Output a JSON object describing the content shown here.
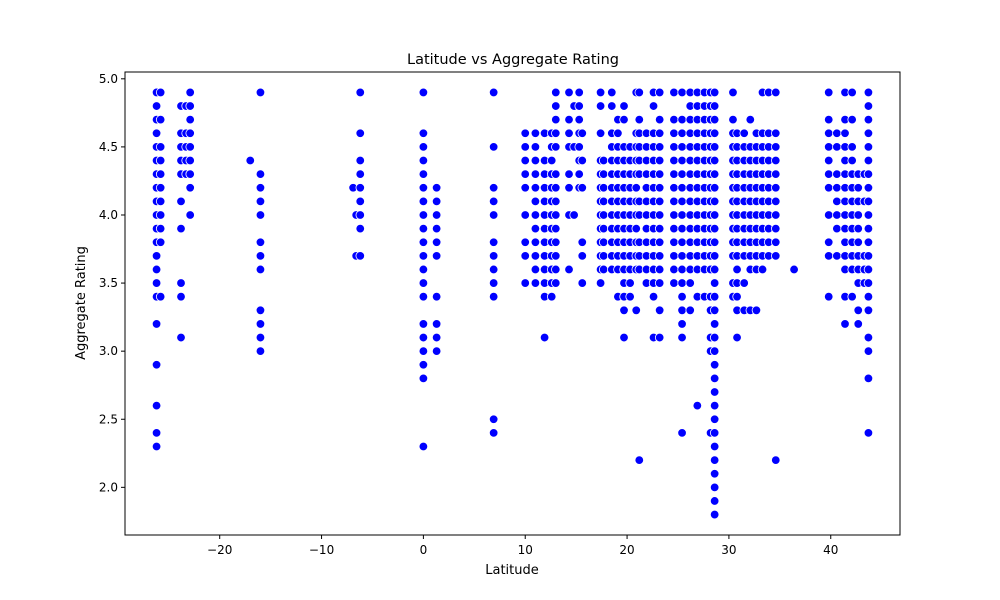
{
  "chart_data": {
    "type": "scatter",
    "title": "Latitude vs Aggregate Rating",
    "xlabel": "Latitude",
    "ylabel": "Aggregate Rating",
    "xlim": [
      -29.3,
      46.8
    ],
    "ylim": [
      1.65,
      5.05
    ],
    "xticks": [
      -20,
      -10,
      0,
      10,
      20,
      30,
      40
    ],
    "xtick_labels": [
      "−20",
      "−10",
      "0",
      "10",
      "20",
      "30",
      "40"
    ],
    "yticks": [
      2.0,
      2.5,
      3.0,
      3.5,
      4.0,
      4.5,
      5.0
    ],
    "ytick_labels": [
      "2.0",
      "2.5",
      "3.0",
      "3.5",
      "4.0",
      "4.5",
      "5.0"
    ],
    "grid": false,
    "legend": "none",
    "marker_color": "#0000ff",
    "marker_edge_color": "#ffffff",
    "columns": [
      {
        "x": -26.2,
        "y": [
          2.3,
          2.4,
          2.6,
          2.9,
          3.2,
          3.4,
          3.5,
          3.6,
          3.7,
          3.8,
          3.9,
          4.0,
          4.1,
          4.2,
          4.3,
          4.4,
          4.5,
          4.6,
          4.7,
          4.8,
          4.9
        ]
      },
      {
        "x": -25.8,
        "y": [
          3.4,
          3.8,
          3.9,
          4.0,
          4.1,
          4.2,
          4.3,
          4.4,
          4.5,
          4.7,
          4.9
        ]
      },
      {
        "x": -23.8,
        "y": [
          3.1,
          3.4,
          3.5,
          3.9,
          4.1,
          4.3,
          4.4,
          4.5,
          4.6,
          4.8
        ]
      },
      {
        "x": -23.3,
        "y": [
          4.3,
          4.4,
          4.5,
          4.6,
          4.8
        ]
      },
      {
        "x": -22.9,
        "y": [
          4.0,
          4.2,
          4.3,
          4.4,
          4.5,
          4.6,
          4.7,
          4.8,
          4.9
        ]
      },
      {
        "x": -17.0,
        "y": [
          4.4
        ]
      },
      {
        "x": -16.0,
        "y": [
          3.0,
          3.1,
          3.2,
          3.3,
          3.6,
          3.7,
          3.8,
          4.0,
          4.1,
          4.2,
          4.3,
          4.9
        ]
      },
      {
        "x": -6.9,
        "y": [
          4.2
        ]
      },
      {
        "x": -6.6,
        "y": [
          3.7,
          4.0
        ]
      },
      {
        "x": -6.2,
        "y": [
          3.7,
          3.9,
          4.0,
          4.1,
          4.2,
          4.3,
          4.4,
          4.6,
          4.9
        ]
      },
      {
        "x": 0.0,
        "y": [
          2.3,
          2.8,
          2.9,
          3.0,
          3.1,
          3.2,
          3.4,
          3.5,
          3.6,
          3.7,
          3.8,
          3.9,
          4.0,
          4.1,
          4.2,
          4.3,
          4.4,
          4.5,
          4.6,
          4.9
        ]
      },
      {
        "x": 1.3,
        "y": [
          3.0,
          3.1,
          3.2,
          3.4,
          3.7,
          3.8,
          3.9,
          4.0,
          4.1,
          4.2
        ]
      },
      {
        "x": 6.9,
        "y": [
          2.4,
          2.5,
          3.4,
          3.5,
          3.6,
          3.7,
          3.8,
          4.0,
          4.1,
          4.2,
          4.5,
          4.9
        ]
      },
      {
        "x": 10.0,
        "y": [
          3.5,
          3.7,
          3.8,
          4.0,
          4.2,
          4.3,
          4.4,
          4.5,
          4.6
        ]
      },
      {
        "x": 11.0,
        "y": [
          3.5,
          3.6,
          3.7,
          3.8,
          3.9,
          4.0,
          4.1,
          4.2,
          4.3,
          4.4,
          4.5,
          4.6
        ]
      },
      {
        "x": 11.9,
        "y": [
          3.1,
          3.4,
          3.5,
          3.6,
          3.7,
          3.8,
          3.9,
          4.0,
          4.1,
          4.2,
          4.3,
          4.4,
          4.6
        ]
      },
      {
        "x": 12.6,
        "y": [
          3.4,
          3.5,
          3.6,
          3.7,
          3.8,
          3.9,
          4.0,
          4.1,
          4.2,
          4.3,
          4.4,
          4.5,
          4.6
        ]
      },
      {
        "x": 13.0,
        "y": [
          3.5,
          3.6,
          3.7,
          3.8,
          3.9,
          4.0,
          4.1,
          4.2,
          4.3,
          4.5,
          4.6,
          4.7,
          4.8,
          4.9
        ]
      },
      {
        "x": 14.3,
        "y": [
          3.6,
          4.0,
          4.2,
          4.3,
          4.5,
          4.6,
          4.7,
          4.9
        ]
      },
      {
        "x": 14.8,
        "y": [
          4.0,
          4.5,
          4.8
        ]
      },
      {
        "x": 15.3,
        "y": [
          4.2,
          4.3,
          4.4,
          4.5,
          4.6,
          4.7,
          4.8,
          4.9
        ]
      },
      {
        "x": 15.6,
        "y": [
          3.5,
          3.7,
          3.8,
          4.2,
          4.4,
          4.6
        ]
      },
      {
        "x": 17.4,
        "y": [
          3.5,
          3.6,
          3.7,
          3.8,
          3.9,
          4.0,
          4.1,
          4.2,
          4.3,
          4.4,
          4.6,
          4.8,
          4.9
        ]
      },
      {
        "x": 17.7,
        "y": [
          3.6,
          3.7,
          3.8,
          3.9,
          4.0,
          4.1,
          4.2,
          4.3,
          4.4
        ]
      },
      {
        "x": 18.5,
        "y": [
          3.6,
          3.7,
          3.8,
          3.9,
          4.0,
          4.1,
          4.2,
          4.3,
          4.4,
          4.5,
          4.6,
          4.8,
          4.9
        ]
      },
      {
        "x": 19.1,
        "y": [
          3.4,
          3.6,
          3.7,
          3.8,
          3.9,
          4.0,
          4.1,
          4.2,
          4.3,
          4.4,
          4.5,
          4.6,
          4.7
        ]
      },
      {
        "x": 19.7,
        "y": [
          3.1,
          3.3,
          3.4,
          3.5,
          3.6,
          3.7,
          3.8,
          3.9,
          4.0,
          4.1,
          4.2,
          4.3,
          4.4,
          4.5,
          4.7,
          4.8
        ]
      },
      {
        "x": 20.3,
        "y": [
          3.4,
          3.5,
          3.6,
          3.7,
          3.8,
          3.9,
          4.0,
          4.1,
          4.2,
          4.3,
          4.4,
          4.5
        ]
      },
      {
        "x": 20.9,
        "y": [
          3.3,
          3.6,
          3.7,
          3.8,
          3.9,
          4.0,
          4.1,
          4.2,
          4.3,
          4.4,
          4.5,
          4.6,
          4.9
        ]
      },
      {
        "x": 21.2,
        "y": [
          2.2,
          3.6,
          3.7,
          3.8,
          4.0,
          4.1,
          4.3,
          4.4,
          4.5,
          4.6,
          4.7,
          4.9
        ]
      },
      {
        "x": 21.9,
        "y": [
          3.5,
          3.6,
          3.7,
          3.8,
          3.9,
          4.0,
          4.1,
          4.2,
          4.3,
          4.4,
          4.5,
          4.6
        ]
      },
      {
        "x": 22.6,
        "y": [
          3.1,
          3.4,
          3.5,
          3.6,
          3.7,
          3.8,
          3.9,
          4.0,
          4.1,
          4.2,
          4.3,
          4.4,
          4.5,
          4.6,
          4.8,
          4.9
        ]
      },
      {
        "x": 23.2,
        "y": [
          3.1,
          3.3,
          3.5,
          3.6,
          3.7,
          3.8,
          3.9,
          4.0,
          4.1,
          4.2,
          4.3,
          4.4,
          4.5,
          4.6,
          4.7,
          4.9
        ]
      },
      {
        "x": 24.6,
        "y": [
          3.5,
          3.6,
          3.7,
          3.8,
          3.9,
          4.0,
          4.1,
          4.2,
          4.3,
          4.4,
          4.5,
          4.6,
          4.7,
          4.9
        ]
      },
      {
        "x": 25.4,
        "y": [
          2.4,
          3.1,
          3.2,
          3.3,
          3.4,
          3.5,
          3.6,
          3.7,
          3.8,
          3.9,
          4.0,
          4.1,
          4.2,
          4.3,
          4.4,
          4.5,
          4.6,
          4.7,
          4.9
        ]
      },
      {
        "x": 26.2,
        "y": [
          3.3,
          3.5,
          3.6,
          3.7,
          3.8,
          3.9,
          4.0,
          4.1,
          4.2,
          4.3,
          4.4,
          4.5,
          4.6,
          4.7,
          4.8,
          4.9
        ]
      },
      {
        "x": 26.9,
        "y": [
          2.6,
          3.4,
          3.6,
          3.7,
          3.8,
          3.9,
          4.0,
          4.1,
          4.2,
          4.3,
          4.4,
          4.5,
          4.6,
          4.7,
          4.8,
          4.9
        ]
      },
      {
        "x": 27.6,
        "y": [
          3.4,
          3.6,
          3.7,
          3.8,
          3.9,
          4.0,
          4.1,
          4.2,
          4.3,
          4.4,
          4.5,
          4.6,
          4.7,
          4.8,
          4.9
        ]
      },
      {
        "x": 28.2,
        "y": [
          2.4,
          3.0,
          3.1,
          3.3,
          3.4,
          3.6,
          3.7,
          3.8,
          3.9,
          4.0,
          4.1,
          4.2,
          4.3,
          4.4,
          4.5,
          4.6,
          4.7,
          4.8,
          4.9
        ]
      },
      {
        "x": 28.6,
        "y": [
          1.8,
          1.9,
          2.0,
          2.1,
          2.2,
          2.3,
          2.4,
          2.5,
          2.6,
          2.7,
          2.8,
          2.9,
          3.0,
          3.1,
          3.2,
          3.3,
          3.4,
          3.5,
          3.6,
          3.7,
          3.8,
          3.9,
          4.0,
          4.1,
          4.2,
          4.3,
          4.4,
          4.5,
          4.6,
          4.7,
          4.8,
          4.9
        ]
      },
      {
        "x": 30.4,
        "y": [
          3.4,
          3.5,
          3.7,
          3.8,
          3.9,
          4.0,
          4.1,
          4.2,
          4.3,
          4.4,
          4.5,
          4.6,
          4.7,
          4.9
        ]
      },
      {
        "x": 30.8,
        "y": [
          3.1,
          3.3,
          3.4,
          3.5,
          3.6,
          3.7,
          3.8,
          3.9,
          4.0,
          4.1,
          4.2,
          4.3,
          4.4,
          4.5,
          4.6
        ]
      },
      {
        "x": 31.5,
        "y": [
          3.3,
          3.5,
          3.7,
          3.8,
          3.9,
          4.0,
          4.1,
          4.2,
          4.3,
          4.4,
          4.5,
          4.6
        ]
      },
      {
        "x": 32.1,
        "y": [
          3.3,
          3.6,
          3.7,
          3.8,
          3.9,
          4.0,
          4.1,
          4.2,
          4.3,
          4.4,
          4.5,
          4.7
        ]
      },
      {
        "x": 32.7,
        "y": [
          3.3,
          3.6,
          3.7,
          3.8,
          3.9,
          4.0,
          4.1,
          4.2,
          4.3,
          4.4,
          4.5,
          4.6
        ]
      },
      {
        "x": 33.3,
        "y": [
          3.6,
          3.7,
          3.8,
          3.9,
          4.0,
          4.1,
          4.2,
          4.3,
          4.4,
          4.5,
          4.6,
          4.9
        ]
      },
      {
        "x": 33.9,
        "y": [
          3.7,
          3.8,
          3.9,
          4.0,
          4.1,
          4.2,
          4.3,
          4.4,
          4.5,
          4.6,
          4.9
        ]
      },
      {
        "x": 34.6,
        "y": [
          2.2,
          3.7,
          3.8,
          3.9,
          4.0,
          4.1,
          4.2,
          4.3,
          4.4,
          4.5,
          4.6,
          4.9
        ]
      },
      {
        "x": 36.4,
        "y": [
          3.6
        ]
      },
      {
        "x": 39.8,
        "y": [
          3.4,
          3.7,
          3.8,
          4.0,
          4.2,
          4.3,
          4.4,
          4.5,
          4.6,
          4.7,
          4.9
        ]
      },
      {
        "x": 40.6,
        "y": [
          3.7,
          3.9,
          4.0,
          4.1,
          4.2,
          4.3,
          4.5,
          4.6
        ]
      },
      {
        "x": 41.4,
        "y": [
          3.2,
          3.4,
          3.6,
          3.7,
          3.8,
          3.9,
          4.0,
          4.1,
          4.2,
          4.3,
          4.4,
          4.5,
          4.6,
          4.7,
          4.9
        ]
      },
      {
        "x": 42.1,
        "y": [
          3.4,
          3.6,
          3.7,
          3.8,
          3.9,
          4.0,
          4.1,
          4.2,
          4.3,
          4.4,
          4.5,
          4.7,
          4.9
        ]
      },
      {
        "x": 42.7,
        "y": [
          3.2,
          3.3,
          3.5,
          3.6,
          3.7,
          3.8,
          3.9,
          4.0,
          4.1,
          4.2,
          4.3
        ]
      },
      {
        "x": 43.3,
        "y": [
          3.5,
          3.6,
          3.7,
          4.1,
          4.3
        ]
      },
      {
        "x": 43.7,
        "y": [
          2.4,
          2.8,
          3.0,
          3.1,
          3.3,
          3.4,
          3.5,
          3.6,
          3.7,
          3.8,
          3.9,
          4.0,
          4.1,
          4.2,
          4.3,
          4.4,
          4.5,
          4.6,
          4.7,
          4.8,
          4.9
        ]
      }
    ]
  }
}
